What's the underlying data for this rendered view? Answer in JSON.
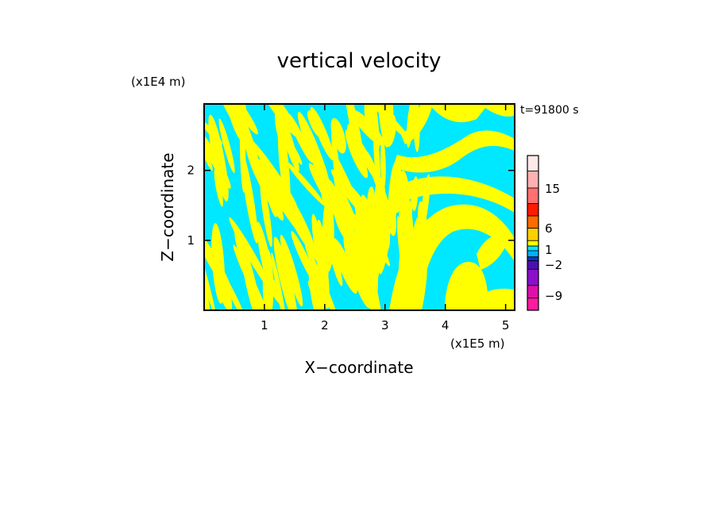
{
  "chart_data": {
    "type": "heatmap",
    "title": "vertical velocity",
    "xlabel": "X−coordinate",
    "ylabel": "Z−coordinate",
    "x_unit": "(x1E5 m)",
    "y_unit": "(x1E4 m)",
    "time_label": "t=91800 s",
    "xlim": [
      0,
      5.15
    ],
    "ylim": [
      0,
      2.95
    ],
    "x_ticks": [
      1,
      2,
      3,
      4,
      5
    ],
    "y_ticks": [
      1,
      2
    ],
    "colorbar": {
      "levels": [
        "-12",
        "-9",
        "-6",
        "-4",
        "-2",
        "-1",
        "0",
        "1",
        "2",
        "4",
        "6",
        "10",
        "15",
        "20"
      ],
      "tick_labels": [
        "15",
        "6",
        "1",
        "−2",
        "−9"
      ],
      "colors": [
        "#ff1aa0",
        "#dd10a8",
        "#8a10c8",
        "#4a10b0",
        "#1030d0",
        "#00b0ff",
        "#00e8ff",
        "#ffff00",
        "#ffd000",
        "#ff6a00",
        "#ff1a00",
        "#ff7070",
        "#ffb0b0",
        "#ffe8e8"
      ]
    },
    "dominant_colors": {
      "upward": "#ffff00",
      "downward": "#00e8ff"
    }
  }
}
